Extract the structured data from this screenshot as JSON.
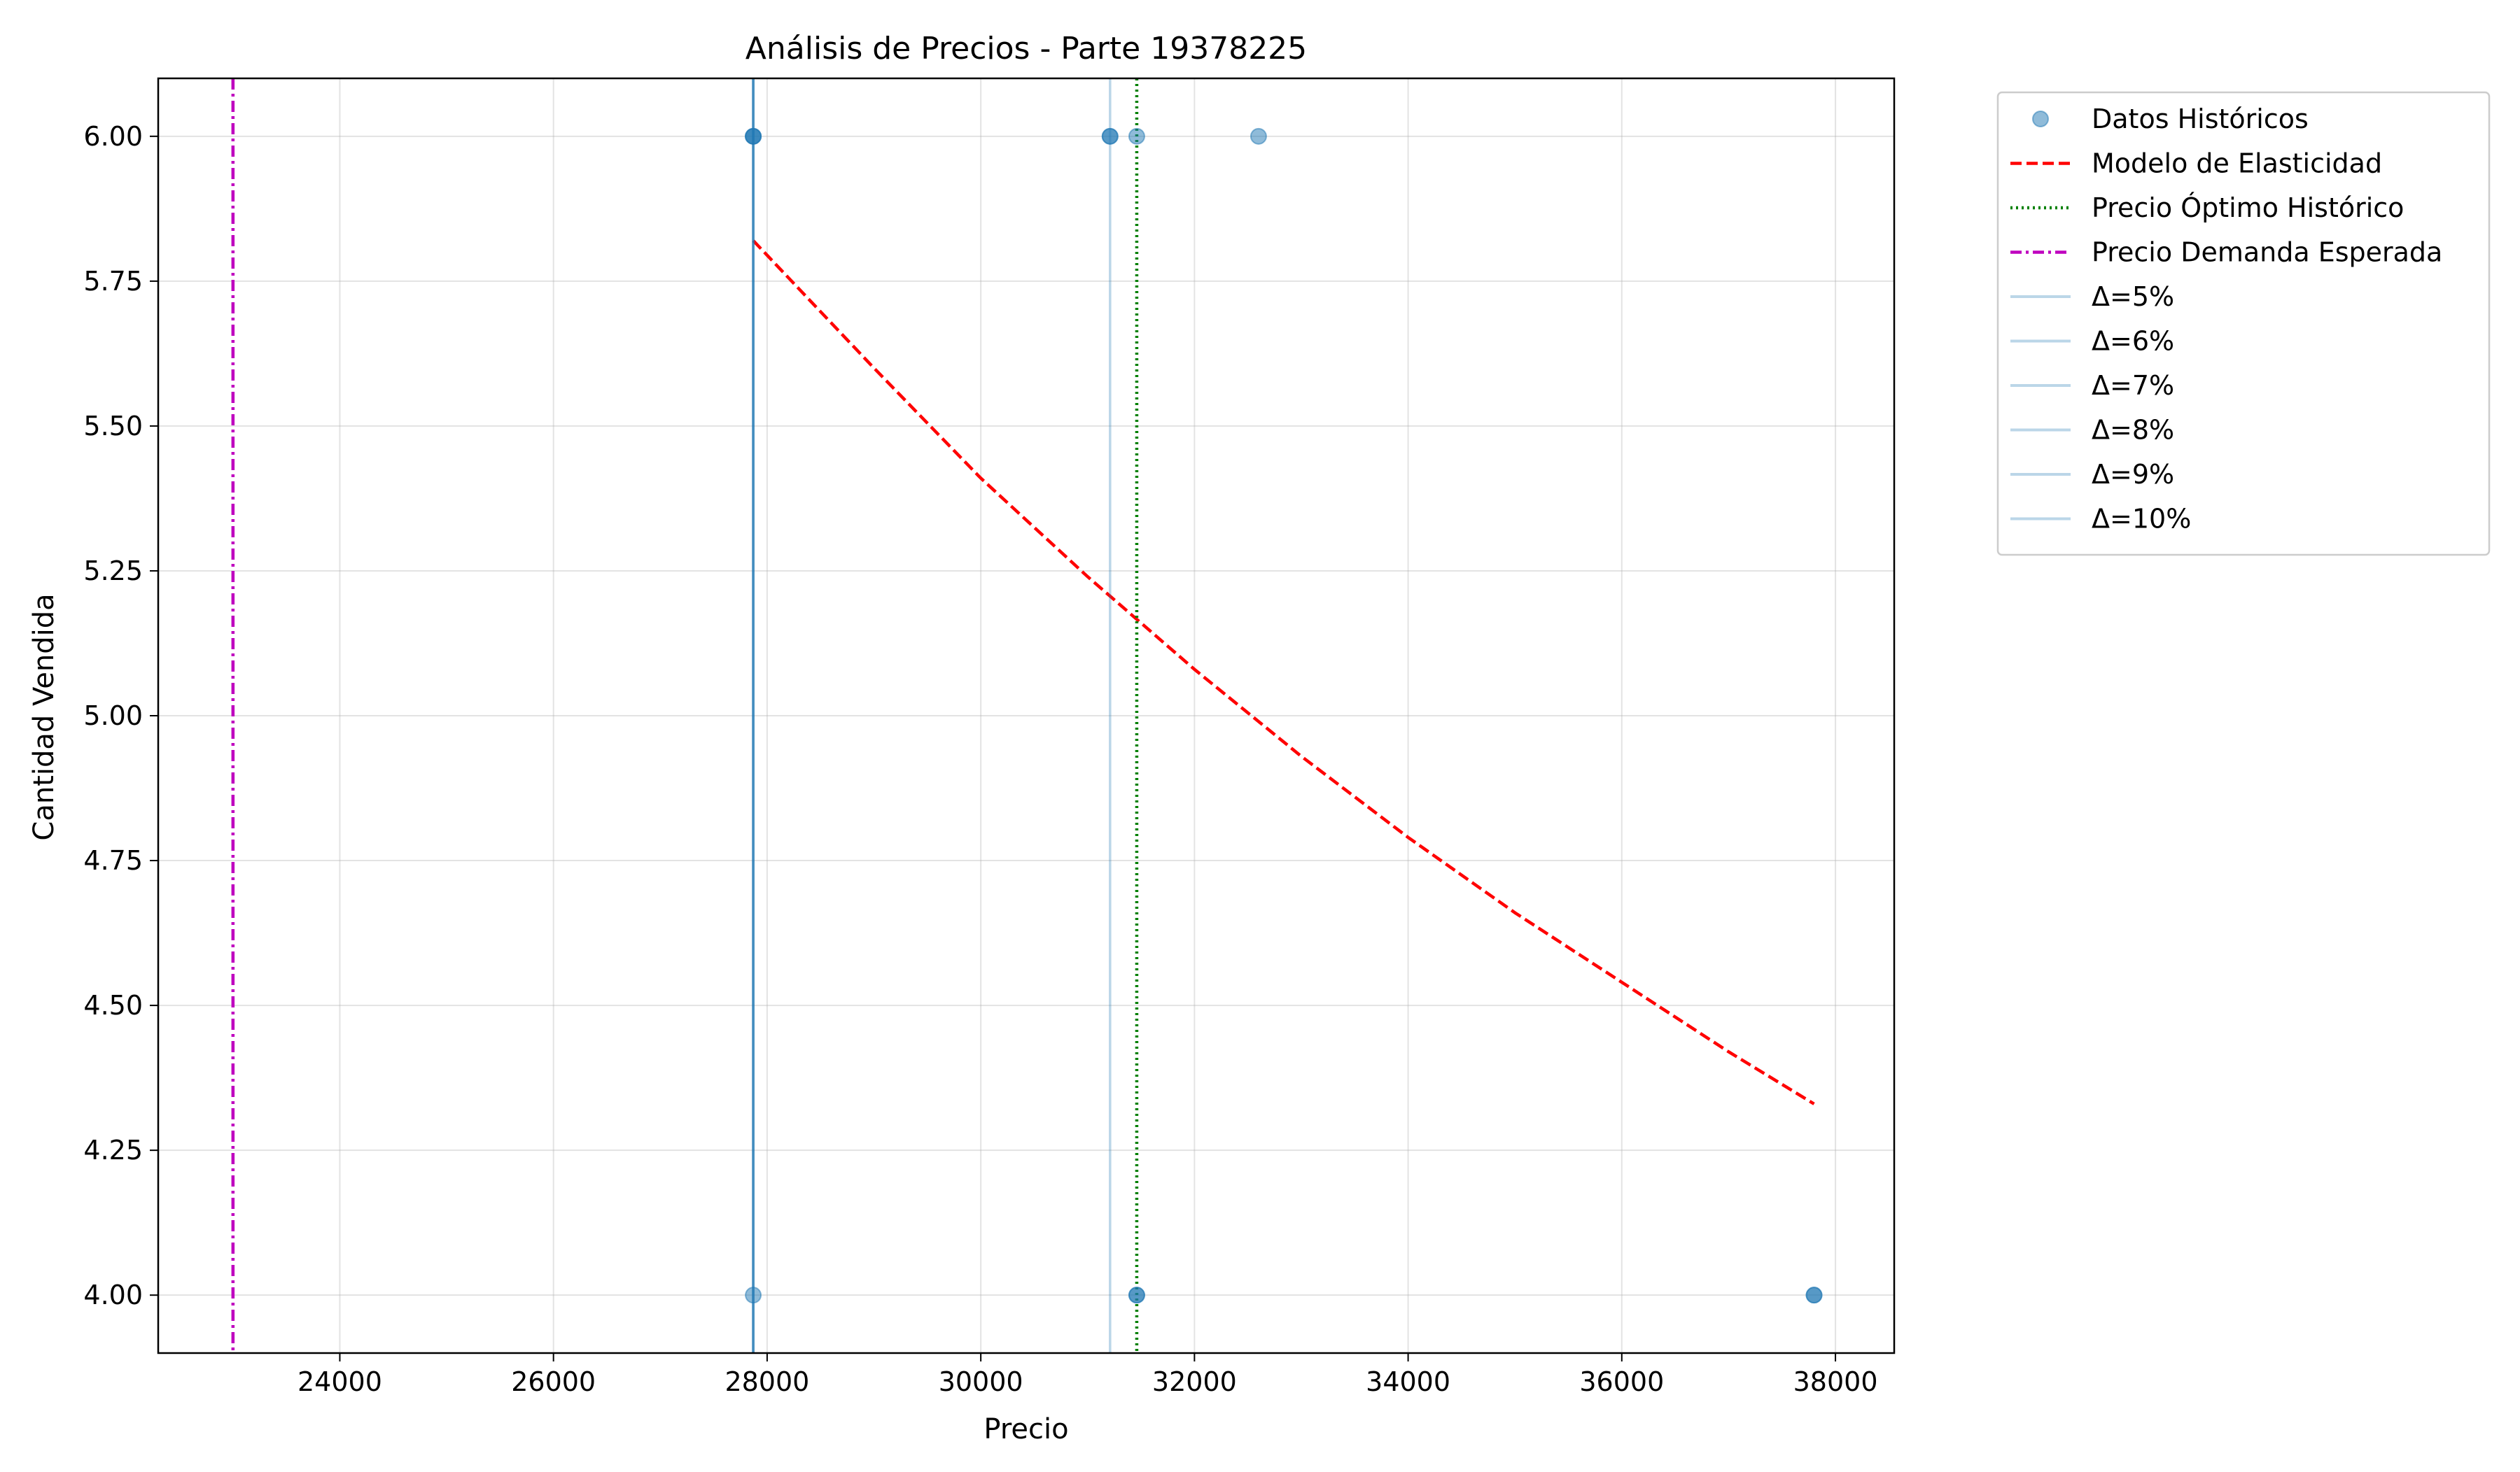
{
  "chart_data": {
    "type": "scatter",
    "title": "Análisis de Precios - Parte 19378225",
    "xlabel": "Precio",
    "ylabel": "Cantidad Vendida",
    "xlim": [
      22300,
      38550
    ],
    "ylim": [
      3.9,
      6.1
    ],
    "x_ticks": [
      24000,
      26000,
      28000,
      30000,
      32000,
      34000,
      36000,
      38000
    ],
    "y_ticks": [
      4.0,
      4.25,
      4.5,
      4.75,
      5.0,
      5.25,
      5.5,
      5.75,
      6.0
    ],
    "x_tick_labels": [
      "24000",
      "26000",
      "28000",
      "30000",
      "32000",
      "34000",
      "36000",
      "38000"
    ],
    "y_tick_labels": [
      "4.00",
      "4.25",
      "4.50",
      "4.75",
      "5.00",
      "5.25",
      "5.50",
      "5.75",
      "6.00"
    ],
    "grid": true,
    "legend_position": "outside-right-top",
    "series": [
      {
        "name": "Datos Históricos",
        "kind": "scatter",
        "color": "#1f77b4",
        "alpha": 0.5,
        "points": [
          {
            "x": 27870,
            "y": 6.0
          },
          {
            "x": 27870,
            "y": 6.0
          },
          {
            "x": 27870,
            "y": 6.0
          },
          {
            "x": 31210,
            "y": 6.0
          },
          {
            "x": 31210,
            "y": 6.0
          },
          {
            "x": 31460,
            "y": 6.0
          },
          {
            "x": 32600,
            "y": 6.0
          },
          {
            "x": 27870,
            "y": 4.0
          },
          {
            "x": 31460,
            "y": 4.0
          },
          {
            "x": 31460,
            "y": 4.0
          },
          {
            "x": 37800,
            "y": 4.0
          },
          {
            "x": 37800,
            "y": 4.0
          }
        ]
      },
      {
        "name": "Modelo de Elasticidad",
        "kind": "line",
        "style": "dashed",
        "color": "#ff0000",
        "points": [
          {
            "x": 27870,
            "y": 5.82
          },
          {
            "x": 29000,
            "y": 5.6
          },
          {
            "x": 30000,
            "y": 5.41
          },
          {
            "x": 31000,
            "y": 5.24
          },
          {
            "x": 32000,
            "y": 5.08
          },
          {
            "x": 33000,
            "y": 4.93
          },
          {
            "x": 34000,
            "y": 4.79
          },
          {
            "x": 35000,
            "y": 4.66
          },
          {
            "x": 36000,
            "y": 4.54
          },
          {
            "x": 37000,
            "y": 4.42
          },
          {
            "x": 37800,
            "y": 4.33
          }
        ]
      },
      {
        "name": "Precio Óptimo Histórico",
        "kind": "vline",
        "style": "dotted",
        "color": "#008000",
        "x": 31460
      },
      {
        "name": "Precio Demanda Esperada",
        "kind": "vline",
        "style": "dashdot",
        "color": "#bf00bf",
        "x": 23000
      },
      {
        "name": "Δ=5%",
        "kind": "vline",
        "style": "solid",
        "color": "#1f77b4",
        "alpha": 0.3,
        "x": 27870
      },
      {
        "name": "Δ=6%",
        "kind": "vline",
        "style": "solid",
        "color": "#1f77b4",
        "alpha": 0.3,
        "x": 27870
      },
      {
        "name": "Δ=7%",
        "kind": "vline",
        "style": "solid",
        "color": "#1f77b4",
        "alpha": 0.3,
        "x": 27870
      },
      {
        "name": "Δ=8%",
        "kind": "vline",
        "style": "solid",
        "color": "#1f77b4",
        "alpha": 0.3,
        "x": 27870
      },
      {
        "name": "Δ=9%",
        "kind": "vline",
        "style": "solid",
        "color": "#1f77b4",
        "alpha": 0.3,
        "x": 27870
      },
      {
        "name": "Δ=10%",
        "kind": "vline",
        "style": "solid",
        "color": "#1f77b4",
        "alpha": 0.3,
        "x": 31210
      }
    ]
  }
}
